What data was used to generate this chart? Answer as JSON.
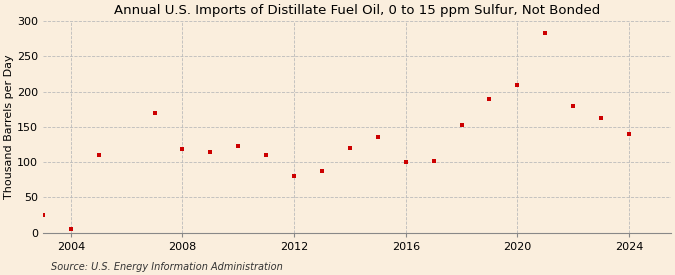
{
  "title": "Annual U.S. Imports of Distillate Fuel Oil, 0 to 15 ppm Sulfur, Not Bonded",
  "ylabel": "Thousand Barrels per Day",
  "source": "Source: U.S. Energy Information Administration",
  "background_color": "#faeedd",
  "marker_color": "#cc0000",
  "grid_color": "#bbbbbb",
  "years": [
    2003,
    2004,
    2005,
    2007,
    2008,
    2009,
    2010,
    2011,
    2012,
    2013,
    2014,
    2015,
    2016,
    2017,
    2018,
    2019,
    2020,
    2021,
    2022,
    2023,
    2024
  ],
  "values": [
    25,
    5,
    110,
    170,
    118,
    115,
    123,
    110,
    80,
    87,
    120,
    135,
    100,
    102,
    153,
    190,
    210,
    283,
    180,
    163,
    140
  ],
  "xlim": [
    2003.0,
    2025.5
  ],
  "ylim": [
    0,
    300
  ],
  "yticks": [
    0,
    50,
    100,
    150,
    200,
    250,
    300
  ],
  "xticks": [
    2004,
    2008,
    2012,
    2016,
    2020,
    2024
  ],
  "title_fontsize": 9.5,
  "label_fontsize": 8,
  "tick_fontsize": 8,
  "source_fontsize": 7
}
